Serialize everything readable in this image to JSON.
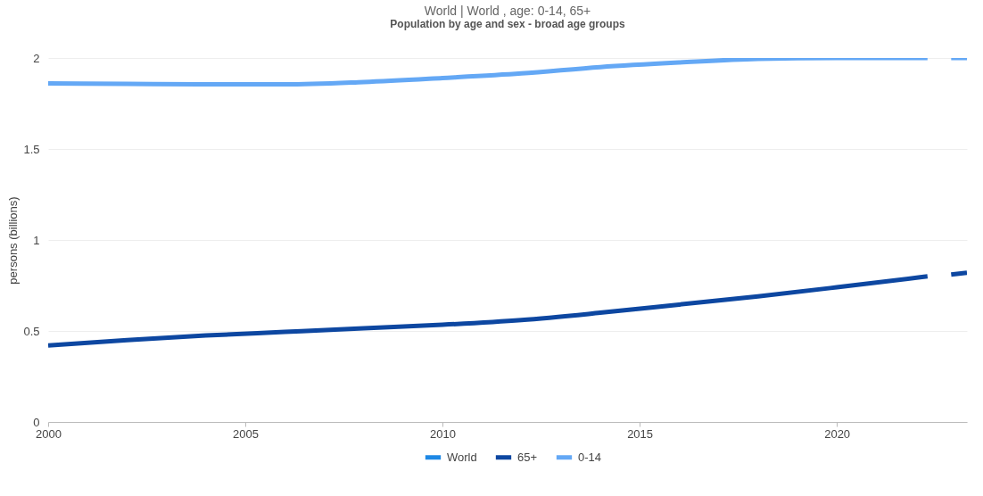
{
  "chart_data": {
    "type": "line",
    "title": "World  | World , age: 0-14, 65+",
    "subtitle": "Population by age and sex - broad age groups",
    "ylabel": "persons (billions)",
    "xlim": [
      2000,
      2023.3
    ],
    "xticks": [
      2000,
      2005,
      2010,
      2015,
      2020
    ],
    "ylim": [
      0,
      2
    ],
    "yticks": [
      0,
      0.5,
      1,
      1.5,
      2
    ],
    "grid": "y",
    "legend": "bottom",
    "line_style": "solid",
    "marker": "none",
    "series": [
      {
        "name": "World",
        "color": "#1e88e5"
      },
      {
        "name": "65+",
        "color": "#0d47a1",
        "x": [
          2000,
          2002,
          2004,
          2006,
          2008,
          2010,
          2012,
          2014,
          2016,
          2018,
          2020,
          2022.3,
          2022.6,
          2022.9,
          2023.3
        ],
        "values": [
          0.42,
          0.45,
          0.475,
          0.495,
          0.515,
          0.534,
          0.56,
          0.6,
          0.645,
          0.69,
          0.74,
          0.8,
          null,
          0.81,
          0.82
        ]
      },
      {
        "name": "0-14",
        "color": "#64a8f5",
        "x": [
          2000,
          2002,
          2004,
          2006,
          2008,
          2010,
          2012,
          2014,
          2016,
          2018,
          2020,
          2022.3,
          2022.6,
          2022.9,
          2023.3
        ],
        "values": [
          1.86,
          1.858,
          1.855,
          1.855,
          1.868,
          1.89,
          1.915,
          1.95,
          1.975,
          1.995,
          2.0,
          2.0,
          null,
          2.0,
          2.0
        ]
      }
    ]
  }
}
